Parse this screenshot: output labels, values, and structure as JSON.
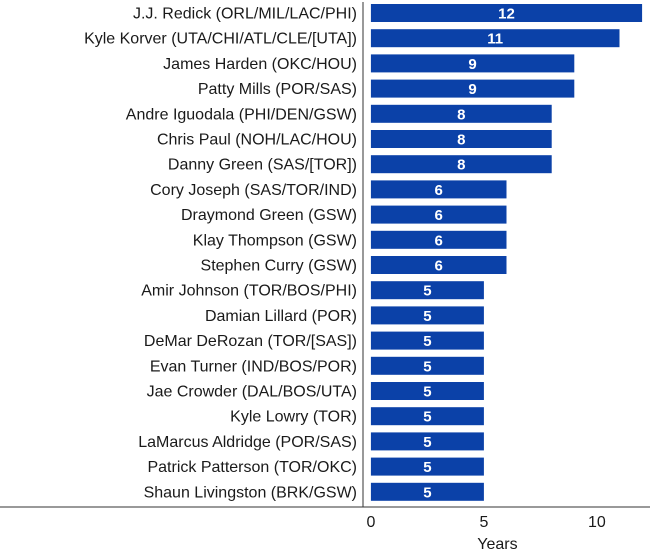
{
  "chart_data": {
    "type": "bar",
    "orientation": "horizontal",
    "categories": [
      "J.J. Redick (ORL/MIL/LAC/PHI)",
      "Kyle Korver (UTA/CHI/ATL/CLE/[UTA])",
      "James Harden (OKC/HOU)",
      "Patty Mills (POR/SAS)",
      "Andre Iguodala (PHI/DEN/GSW)",
      "Chris Paul (NOH/LAC/HOU)",
      "Danny Green (SAS/[TOR])",
      "Cory Joseph (SAS/TOR/IND)",
      "Draymond Green (GSW)",
      "Klay Thompson (GSW)",
      "Stephen Curry (GSW)",
      "Amir Johnson (TOR/BOS/PHI)",
      "Damian Lillard (POR)",
      "DeMar DeRozan (TOR/[SAS])",
      "Evan Turner (IND/BOS/POR)",
      "Jae Crowder (DAL/BOS/UTA)",
      "Kyle Lowry (TOR)",
      "LaMarcus Aldridge (POR/SAS)",
      "Patrick Patterson (TOR/OKC)",
      "Shaun Livingston (BRK/GSW)"
    ],
    "values": [
      12,
      11,
      9,
      9,
      8,
      8,
      8,
      6,
      6,
      6,
      6,
      5,
      5,
      5,
      5,
      5,
      5,
      5,
      5,
      5
    ],
    "xlabel": "Years",
    "ylabel": "",
    "title": "",
    "xlim": [
      -0.35,
      12.35
    ],
    "xticks": [
      "0",
      "5",
      "10"
    ],
    "xtick_values": [
      0,
      5,
      10
    ],
    "bar_color": "#0b41a8",
    "grid": false,
    "data_labels": true
  }
}
